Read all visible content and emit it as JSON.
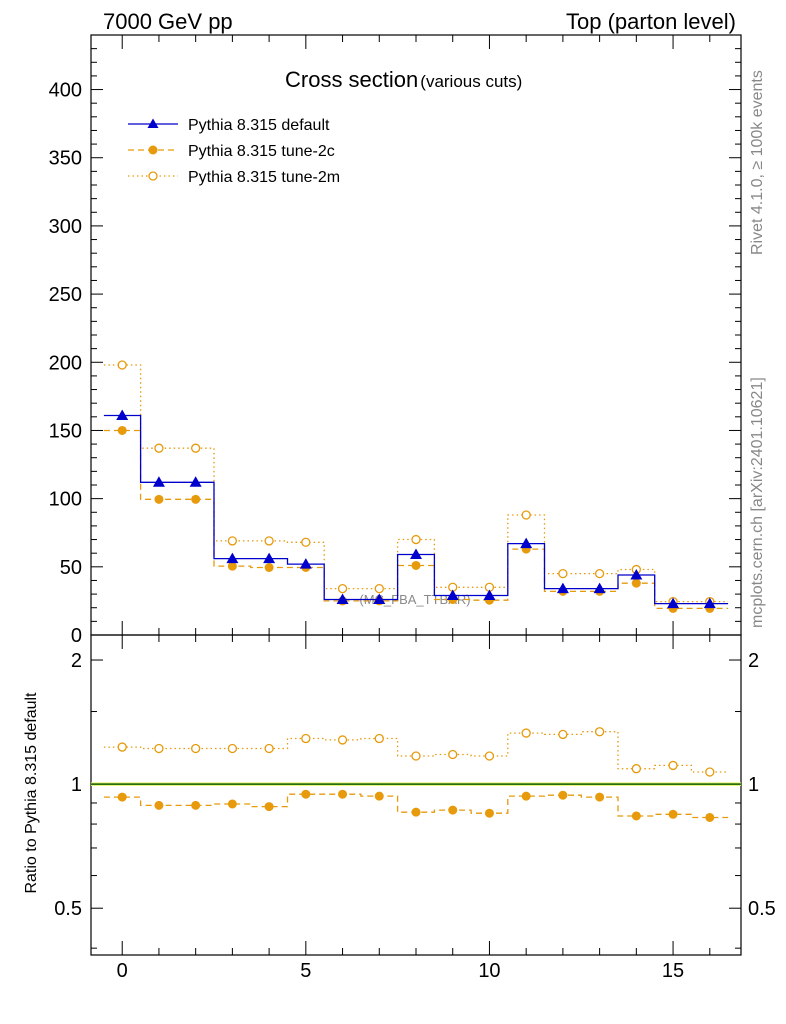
{
  "header": {
    "left": "7000 GeV pp",
    "right": "Top (parton level)"
  },
  "side_text": {
    "top": "Rivet 4.1.0, ≥ 100k events",
    "bottom": "mcplots.cern.ch [arXiv:2401.10621]"
  },
  "chart_data": [
    {
      "type": "line",
      "title": "Cross section",
      "subtitle": "(various cuts)",
      "watermark": "(MC_FBA_TTBAR)",
      "xlim": [
        -0.85,
        16.85
      ],
      "ylim": [
        0,
        440
      ],
      "yticks": [
        0,
        50,
        100,
        150,
        200,
        250,
        300,
        350,
        400
      ],
      "x": [
        0,
        1,
        2,
        3,
        4,
        5,
        6,
        7,
        8,
        9,
        10,
        11,
        12,
        13,
        14,
        15,
        16
      ],
      "series": [
        {
          "name": "Pythia 8.315 default",
          "color": "#0000cc",
          "style": "solid-triangle",
          "values": [
            161,
            112,
            112,
            56,
            56,
            52,
            26,
            26,
            59,
            29,
            29,
            67,
            34,
            34,
            44,
            23,
            23
          ]
        },
        {
          "name": "Pythia 8.315 tune-2c",
          "color": "#e69a0c",
          "style": "dashed-filled-circle",
          "values": [
            150,
            99.5,
            99.5,
            50.5,
            49.5,
            49.5,
            25,
            25,
            51,
            26,
            25.5,
            63,
            32,
            32,
            38,
            19.5,
            19.5
          ]
        },
        {
          "name": "Pythia 8.315 tune-2m",
          "color": "#e69a0c",
          "style": "dotted-open-circle",
          "values": [
            198,
            137,
            137,
            69,
            69,
            68,
            34,
            34,
            70,
            35,
            35,
            88,
            45,
            45,
            48,
            24.5,
            24.5
          ]
        }
      ]
    },
    {
      "type": "line",
      "ylabel": "Ratio to Pythia 8.315 default",
      "yscale": "log",
      "ylim": [
        0.385,
        2.3
      ],
      "yticks": [
        0.5,
        1,
        2
      ],
      "xticks": [
        0,
        5,
        10,
        15
      ],
      "x": [
        0,
        1,
        2,
        3,
        4,
        5,
        6,
        7,
        8,
        9,
        10,
        11,
        12,
        13,
        14,
        15,
        16
      ],
      "series": [
        {
          "name": "Pythia 8.315 tune-2c",
          "color": "#e69a0c",
          "style": "dashed-filled-circle",
          "values": [
            0.93,
            0.888,
            0.888,
            0.895,
            0.882,
            0.945,
            0.945,
            0.935,
            0.855,
            0.865,
            0.85,
            0.935,
            0.94,
            0.93,
            0.837,
            0.845,
            0.83
          ]
        },
        {
          "name": "Pythia 8.315 tune-2m",
          "color": "#e69a0c",
          "style": "dotted-open-circle",
          "values": [
            1.23,
            1.22,
            1.22,
            1.22,
            1.22,
            1.29,
            1.28,
            1.29,
            1.17,
            1.18,
            1.17,
            1.33,
            1.32,
            1.34,
            1.09,
            1.11,
            1.07
          ]
        }
      ]
    }
  ]
}
